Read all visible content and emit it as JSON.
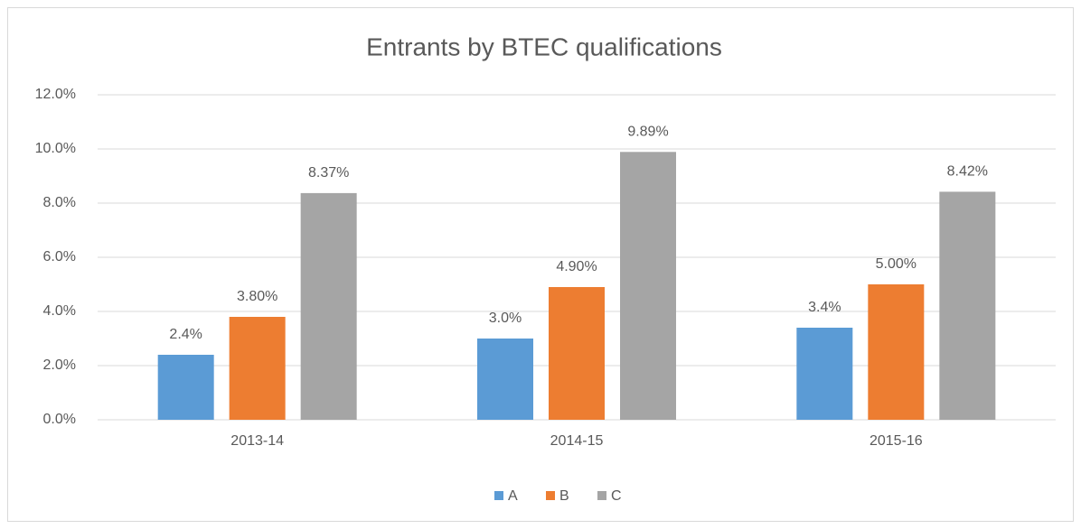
{
  "chart_data": {
    "type": "bar",
    "title": "Entrants by BTEC qualifications",
    "categories": [
      "2013-14",
      "2014-15",
      "2015-16"
    ],
    "series": [
      {
        "name": "A",
        "color": "#5b9bd5",
        "values": [
          2.4,
          3.0,
          3.4
        ],
        "value_labels": [
          "2.4%",
          "3.0%",
          "3.4%"
        ]
      },
      {
        "name": "B",
        "color": "#ed7d31",
        "values": [
          3.8,
          4.9,
          5.0
        ],
        "value_labels": [
          "3.80%",
          "4.90%",
          "5.00%"
        ]
      },
      {
        "name": "C",
        "color": "#a5a5a5",
        "values": [
          8.37,
          9.89,
          8.42
        ],
        "value_labels": [
          "8.37%",
          "9.89%",
          "8.42%"
        ]
      }
    ],
    "ylim": [
      0,
      12
    ],
    "yticks": [
      {
        "value": 0,
        "label": "0.0%"
      },
      {
        "value": 2,
        "label": "2.0%"
      },
      {
        "value": 4,
        "label": "4.0%"
      },
      {
        "value": 6,
        "label": "6.0%"
      },
      {
        "value": 8,
        "label": "8.0%"
      },
      {
        "value": 10,
        "label": "10.0%"
      },
      {
        "value": 12,
        "label": "12.0%"
      }
    ],
    "grid": true,
    "legend": "bottom"
  }
}
